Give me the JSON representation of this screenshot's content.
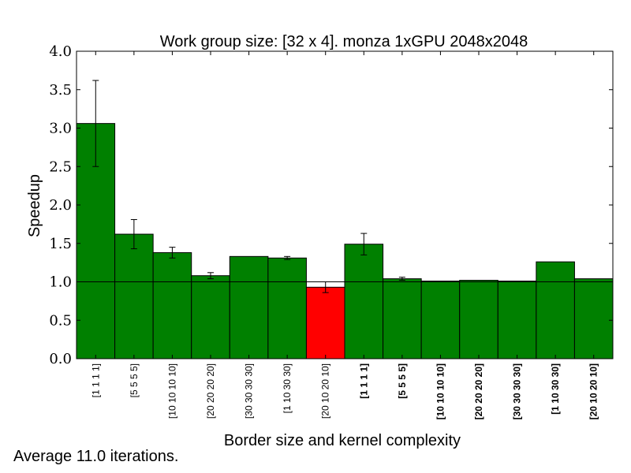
{
  "chart_data": {
    "type": "bar",
    "title": "Work group size: [32 x 4]. monza 1xGPU 2048x2048",
    "xlabel": "Border size and kernel complexity",
    "ylabel": "Speedup",
    "ylim": [
      0,
      4.0
    ],
    "yticks": [
      "0.0",
      "0.5",
      "1.0",
      "1.5",
      "2.0",
      "2.5",
      "3.0",
      "3.5",
      "4.0"
    ],
    "reference_line": 1.0,
    "grid": false,
    "categories": [
      "[1 1 1 1]",
      "[5 5 5 5]",
      "[10 10 10 10]",
      "[20 20 20 20]",
      "[30 30 30 30]",
      "[1 10 30 30]",
      "[20 10 20 10]",
      "[1 1 1 1]",
      "[5 5 5 5]",
      "[10 10 10 10]",
      "[20 20 20 20]",
      "[30 30 30 30]",
      "[1 10 30 30]",
      "[20 10 20 10]"
    ],
    "category_bold": [
      false,
      false,
      false,
      false,
      false,
      false,
      false,
      true,
      true,
      true,
      true,
      true,
      true,
      true
    ],
    "values": [
      3.06,
      1.62,
      1.38,
      1.08,
      1.33,
      1.31,
      0.93,
      1.49,
      1.04,
      1.01,
      1.02,
      1.01,
      1.26,
      1.04
    ],
    "errors": [
      0.56,
      0.19,
      0.07,
      0.04,
      0.0,
      0.02,
      0.07,
      0.14,
      0.02,
      0.0,
      0.0,
      0.0,
      0.0,
      0.0
    ],
    "colors": {
      "above": "#008000",
      "below": "#ff0000"
    }
  },
  "footnote": "Average 11.0 iterations."
}
